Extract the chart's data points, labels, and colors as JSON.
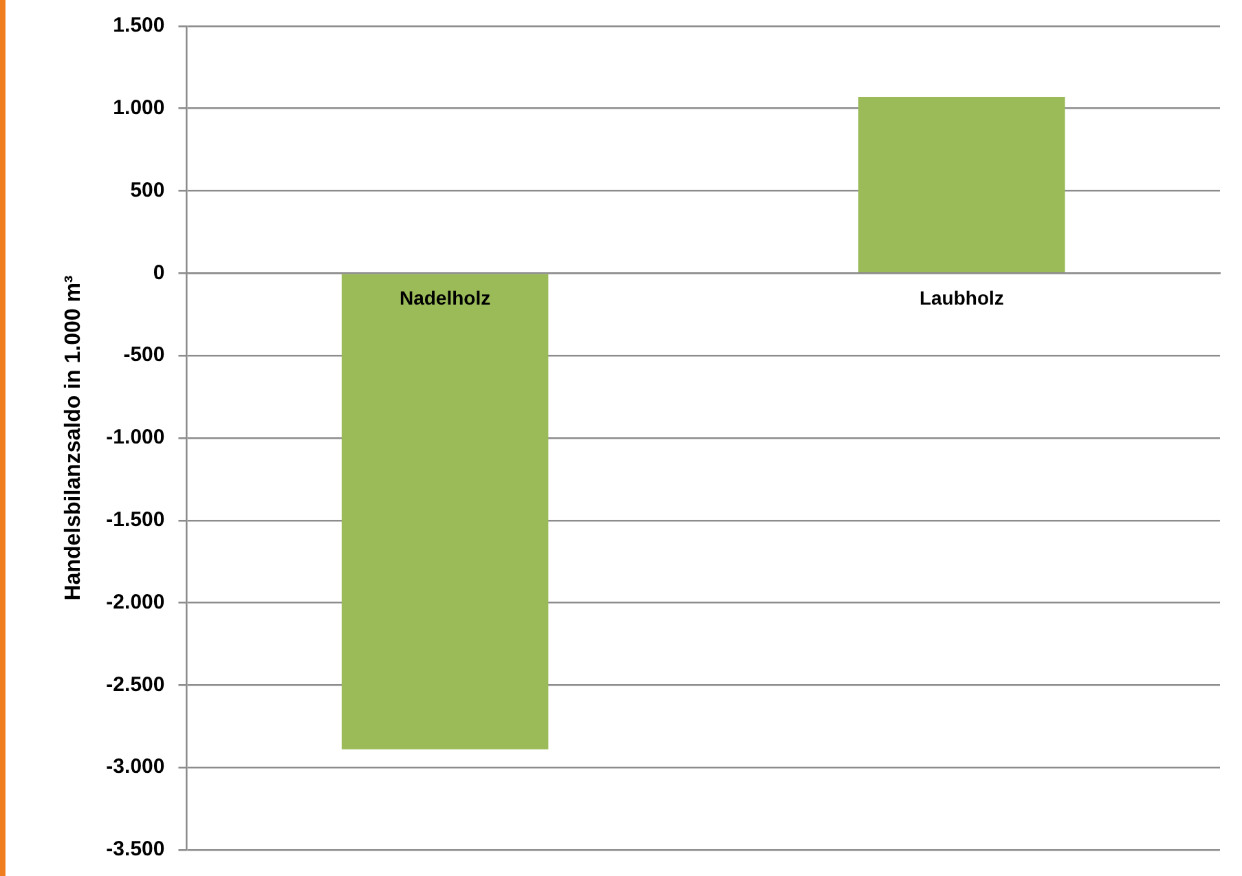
{
  "chart_data": {
    "type": "bar",
    "ylabel": "Handelsbilanzsaldo in 1.000 m³",
    "categories": [
      "Nadelholz",
      "Laubholz"
    ],
    "values": [
      -2890,
      1070
    ],
    "color": "#9bbb59",
    "ylim": [
      -3500,
      1500
    ],
    "yticks": [
      {
        "value": -3500,
        "label": "-3.500"
      },
      {
        "value": -3000,
        "label": "-3.000"
      },
      {
        "value": -2500,
        "label": "-2.500"
      },
      {
        "value": -2000,
        "label": "-2.000"
      },
      {
        "value": -1500,
        "label": "-1.500"
      },
      {
        "value": -1000,
        "label": "-1.000"
      },
      {
        "value": -500,
        "label": "-500"
      },
      {
        "value": 0,
        "label": "0"
      },
      {
        "value": 500,
        "label": "500"
      },
      {
        "value": 1000,
        "label": "1.000"
      },
      {
        "value": 1500,
        "label": "1.500"
      }
    ],
    "grid": "y",
    "legend": false
  }
}
